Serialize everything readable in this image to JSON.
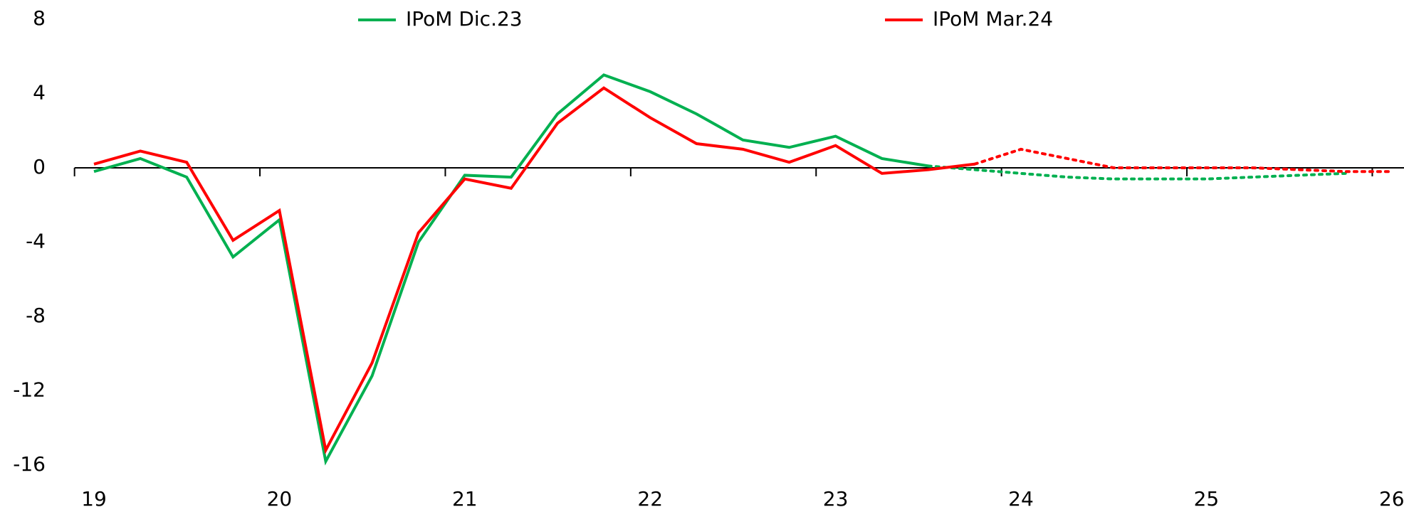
{
  "chart_data": {
    "type": "line",
    "categories": [
      "19",
      null,
      null,
      null,
      "20",
      null,
      null,
      null,
      "21",
      null,
      null,
      null,
      "22",
      null,
      null,
      null,
      "23",
      null,
      null,
      null,
      "24",
      null,
      null,
      null,
      "25",
      null,
      null,
      null,
      "26"
    ],
    "series": [
      {
        "name": "IPoM Dic.23",
        "color": "#00b050",
        "values": [
          -0.2,
          0.5,
          -0.5,
          -4.8,
          -2.8,
          -15.8,
          -11.2,
          -4.0,
          -0.4,
          -0.5,
          2.9,
          5.0,
          4.1,
          2.9,
          1.5,
          1.1,
          1.7,
          0.5,
          0.1,
          null,
          null,
          null,
          null,
          null,
          null,
          null,
          null,
          null,
          null
        ],
        "forecast": [
          null,
          null,
          null,
          null,
          null,
          null,
          null,
          null,
          null,
          null,
          null,
          null,
          null,
          null,
          null,
          null,
          null,
          null,
          0.1,
          -0.1,
          -0.3,
          -0.5,
          -0.6,
          -0.6,
          -0.6,
          -0.5,
          -0.4,
          -0.3,
          null
        ]
      },
      {
        "name": "IPoM Mar.24",
        "color": "#ff0000",
        "values": [
          0.2,
          0.9,
          0.3,
          -3.9,
          -2.3,
          -15.2,
          -10.5,
          -3.5,
          -0.6,
          -1.1,
          2.4,
          4.3,
          2.7,
          1.3,
          1.0,
          0.3,
          1.2,
          -0.3,
          -0.1,
          0.2,
          null,
          null,
          null,
          null,
          null,
          null,
          null,
          null,
          null
        ],
        "forecast": [
          null,
          null,
          null,
          null,
          null,
          null,
          null,
          null,
          null,
          null,
          null,
          null,
          null,
          null,
          null,
          null,
          null,
          null,
          null,
          0.2,
          1.0,
          0.5,
          0.0,
          0.0,
          0.0,
          0.0,
          -0.1,
          -0.2,
          -0.2
        ]
      }
    ],
    "ylim": [
      -16,
      8
    ],
    "yticks": [
      -16,
      -12,
      -8,
      -4,
      0,
      4,
      8
    ],
    "grid": false
  }
}
